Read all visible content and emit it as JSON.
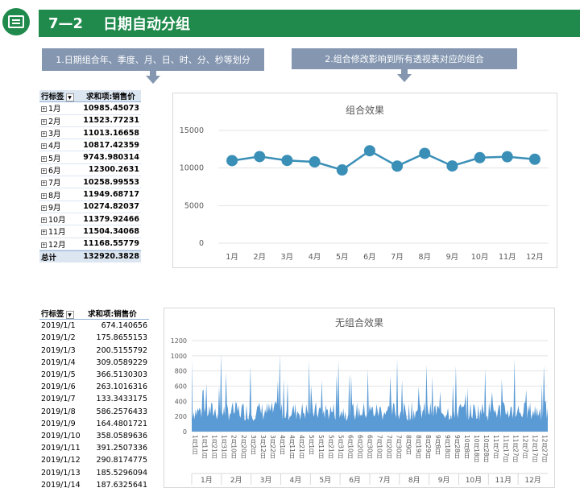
{
  "header": {
    "number": "7—2",
    "title": "日期自动分组"
  },
  "callouts": [
    "1.日期组合年、季度、月、日、时、分、秒等划分",
    "2.组合修改影响到所有透视表对应的组合"
  ],
  "pivot_grouped": {
    "header_row_label": "行标签",
    "header_value": "求和项:销售价",
    "rows": [
      {
        "label": "1月",
        "value": "10985.45073"
      },
      {
        "label": "2月",
        "value": "11523.77231"
      },
      {
        "label": "3月",
        "value": "11013.16658"
      },
      {
        "label": "4月",
        "value": "10817.42359"
      },
      {
        "label": "5月",
        "value": "9743.980314"
      },
      {
        "label": "6月",
        "value": "12300.2631"
      },
      {
        "label": "7月",
        "value": "10258.99553"
      },
      {
        "label": "8月",
        "value": "11949.68717"
      },
      {
        "label": "9月",
        "value": "10274.82037"
      },
      {
        "label": "10月",
        "value": "11379.92466"
      },
      {
        "label": "11月",
        "value": "11504.34068"
      },
      {
        "label": "12月",
        "value": "11168.55779"
      }
    ],
    "total_label": "总计",
    "total_value": "132920.3828"
  },
  "pivot_ungrouped": {
    "header_row_label": "行标签",
    "header_value": "求和项:销售价",
    "rows": [
      {
        "label": "2019/1/1",
        "value": "674.140656"
      },
      {
        "label": "2019/1/2",
        "value": "175.8655153"
      },
      {
        "label": "2019/1/3",
        "value": "200.5155792"
      },
      {
        "label": "2019/1/4",
        "value": "309.0589229"
      },
      {
        "label": "2019/1/5",
        "value": "366.5130303"
      },
      {
        "label": "2019/1/6",
        "value": "263.1016316"
      },
      {
        "label": "2019/1/7",
        "value": "133.3433175"
      },
      {
        "label": "2019/1/8",
        "value": "586.2576433"
      },
      {
        "label": "2019/1/9",
        "value": "164.4801721"
      },
      {
        "label": "2019/1/10",
        "value": "358.0589636"
      },
      {
        "label": "2019/1/11",
        "value": "391.2507336"
      },
      {
        "label": "2019/1/12",
        "value": "290.8174775"
      },
      {
        "label": "2019/1/13",
        "value": "185.5296094"
      },
      {
        "label": "2019/1/14",
        "value": "187.6325641"
      }
    ]
  },
  "chart_data": [
    {
      "type": "line",
      "title": "组合效果",
      "categories": [
        "1月",
        "2月",
        "3月",
        "4月",
        "5月",
        "6月",
        "7月",
        "8月",
        "9月",
        "10月",
        "11月",
        "12月"
      ],
      "values": [
        10985.45,
        11523.77,
        11013.17,
        10817.42,
        9743.98,
        12300.26,
        10259.0,
        11949.69,
        10274.82,
        11379.92,
        11504.34,
        11168.56
      ],
      "yticks": [
        "0",
        "5000",
        "10000",
        "15000"
      ],
      "ylim": [
        0,
        15000
      ],
      "color": "#3a8fb7"
    },
    {
      "type": "area",
      "title": "无组合效果",
      "yticks": [
        "0",
        "200",
        "400",
        "600",
        "800",
        "1000",
        "1200"
      ],
      "ylim": [
        0,
        1200
      ],
      "color": "#5b9bd5",
      "day_ticks": [
        "1月1日",
        "1月11日",
        "1月21日",
        "1月31日",
        "2月10日",
        "2月20日",
        "3月2日",
        "3月12日",
        "3月22日",
        "4月1日",
        "4月11日",
        "4月21日",
        "5月1日",
        "5月11日",
        "5月21日",
        "5月31日",
        "6月10日",
        "6月20日",
        "6月30日",
        "7月10日",
        "7月20日",
        "7月30日",
        "8月9日",
        "8月19日",
        "8月29日",
        "9月8日",
        "9月18日",
        "9月28日",
        "10月8日",
        "10月18日",
        "10月28日",
        "11月7日",
        "11月17日",
        "11月27日",
        "12月7日",
        "12月17日",
        "12月27日"
      ],
      "month_labels": [
        "1月",
        "2月",
        "3月",
        "4月",
        "5月",
        "6月",
        "7月",
        "8月",
        "9月",
        "10月",
        "11月",
        "12月"
      ]
    }
  ]
}
